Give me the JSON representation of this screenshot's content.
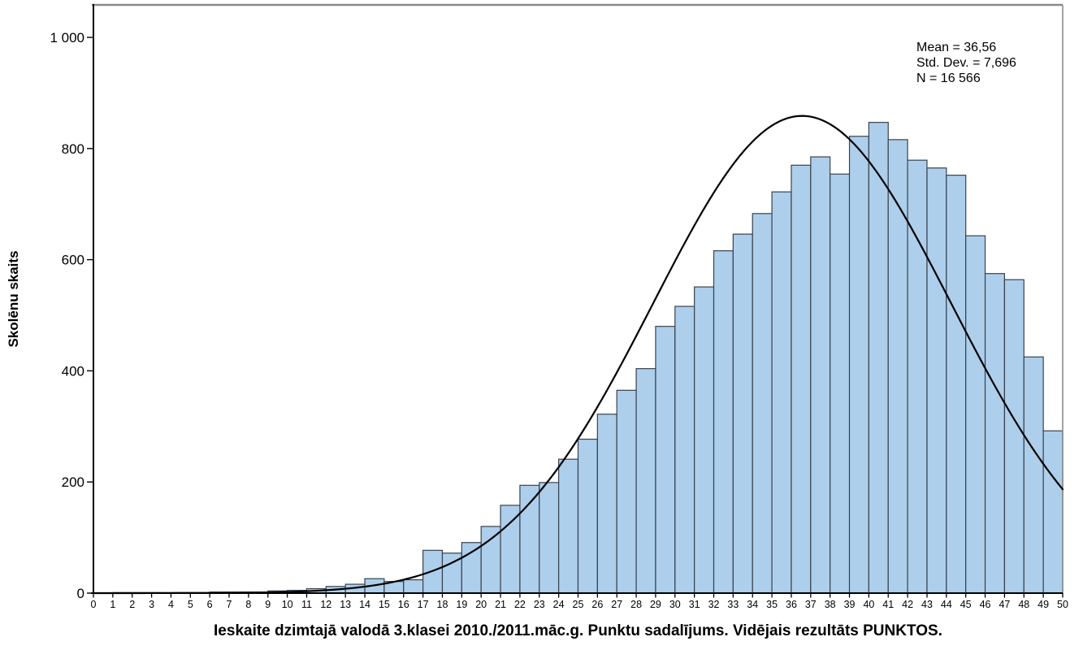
{
  "chart_data": {
    "type": "bar",
    "subtype": "histogram-with-normal-curve",
    "title": "",
    "xlabel": "Ieskaite dzimtajā valodā 3.klasei 2010./2011.māc.g. Punktu sadalījums. Vidējais rezultāts PUNKTOS.",
    "ylabel": "Skolēnu skaits",
    "xlim": [
      0,
      50
    ],
    "ylim": [
      0,
      1000
    ],
    "grid": false,
    "legend": null,
    "bin_start": 0,
    "bin_width": 1,
    "values": [
      0,
      1,
      1,
      1,
      1,
      1,
      2,
      2,
      2,
      4,
      5,
      8,
      12,
      16,
      26,
      21,
      24,
      77,
      72,
      91,
      120,
      158,
      194,
      199,
      241,
      277,
      322,
      365,
      404,
      480,
      516,
      551,
      616,
      646,
      683,
      722,
      770,
      785,
      754,
      822,
      847,
      816,
      779,
      765,
      752,
      643,
      575,
      564,
      425,
      292
    ],
    "x_tick_labels": [
      "0",
      "1",
      "2",
      "3",
      "4",
      "5",
      "6",
      "7",
      "8",
      "9",
      "10",
      "11",
      "12",
      "13",
      "14",
      "15",
      "16",
      "17",
      "18",
      "19",
      "20",
      "21",
      "22",
      "23",
      "24",
      "25",
      "26",
      "27",
      "28",
      "29",
      "30",
      "31",
      "32",
      "33",
      "34",
      "35",
      "36",
      "37",
      "38",
      "39",
      "40",
      "41",
      "42",
      "43",
      "44",
      "45",
      "46",
      "47",
      "48",
      "49",
      "50"
    ],
    "y_tick_values": [
      0,
      200,
      400,
      600,
      800,
      1000
    ],
    "y_tick_labels": [
      "0",
      "200",
      "400",
      "600",
      "800",
      "1 000"
    ],
    "normal_curve": {
      "mean": 36.56,
      "std_dev": 7.696,
      "n": 16566,
      "bin_width": 1
    },
    "stats_box": {
      "lines": [
        "Mean = 36,56",
        "Std. Dev. = 7,696",
        "N = 16 566"
      ]
    },
    "colors": {
      "bar_fill": "#adcfec",
      "bar_stroke": "#39424c",
      "curve": "#000000",
      "axis": "#000000",
      "frame": "#8a8a8a",
      "tick_text": "#000000"
    }
  }
}
